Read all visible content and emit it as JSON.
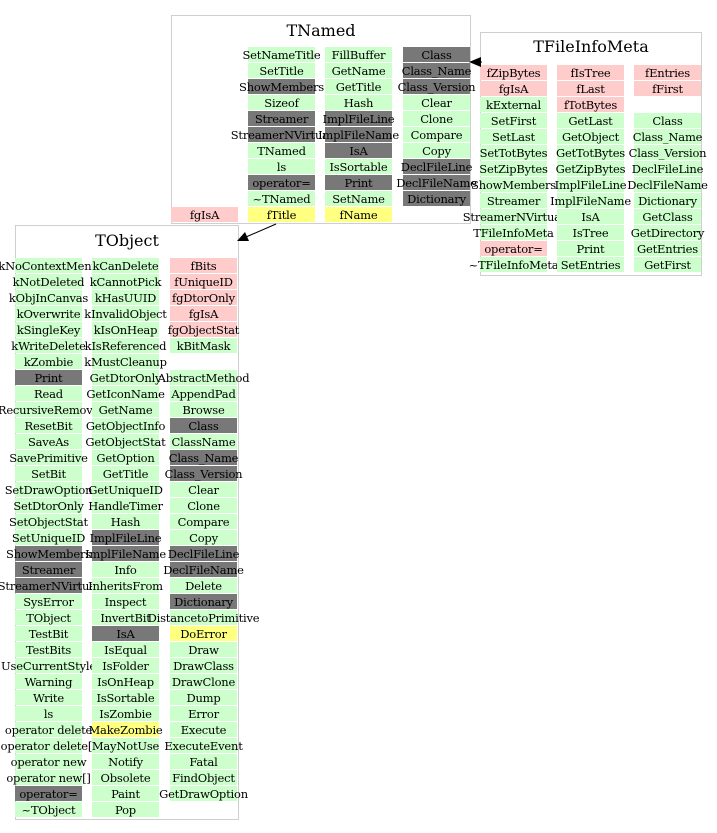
{
  "colors": {
    "method": "#ccffcc",
    "data_member": "#ffcccc",
    "virtual": "#787878",
    "highlight": "#ffff80"
  },
  "classes": {
    "tnamed": {
      "title": "TNamed",
      "columns": [
        [
          null,
          null,
          null,
          null,
          null,
          null,
          null,
          null,
          null,
          null,
          {
            "label": "fgIsA",
            "kind": "d"
          }
        ],
        [
          {
            "label": "SetNameTitle",
            "kind": "m"
          },
          {
            "label": "SetTitle",
            "kind": "m"
          },
          {
            "label": "ShowMembers",
            "kind": "v"
          },
          {
            "label": "Sizeof",
            "kind": "m"
          },
          {
            "label": "Streamer",
            "kind": "v"
          },
          {
            "label": "StreamerNVirtual",
            "kind": "v"
          },
          {
            "label": "TNamed",
            "kind": "m"
          },
          {
            "label": "ls",
            "kind": "m"
          },
          {
            "label": "operator=",
            "kind": "v"
          },
          {
            "label": "~TNamed",
            "kind": "m"
          },
          {
            "label": "fTitle",
            "kind": "p"
          }
        ],
        [
          {
            "label": "FillBuffer",
            "kind": "m"
          },
          {
            "label": "GetName",
            "kind": "m"
          },
          {
            "label": "GetTitle",
            "kind": "m"
          },
          {
            "label": "Hash",
            "kind": "m"
          },
          {
            "label": "ImplFileLine",
            "kind": "v"
          },
          {
            "label": "ImplFileName",
            "kind": "v"
          },
          {
            "label": "IsA",
            "kind": "v"
          },
          {
            "label": "IsSortable",
            "kind": "m"
          },
          {
            "label": "Print",
            "kind": "v"
          },
          {
            "label": "SetName",
            "kind": "m"
          },
          {
            "label": "fName",
            "kind": "p"
          }
        ],
        [
          {
            "label": "Class",
            "kind": "v"
          },
          {
            "label": "Class_Name",
            "kind": "v"
          },
          {
            "label": "Class_Version",
            "kind": "v"
          },
          {
            "label": "Clear",
            "kind": "m"
          },
          {
            "label": "Clone",
            "kind": "m"
          },
          {
            "label": "Compare",
            "kind": "m"
          },
          {
            "label": "Copy",
            "kind": "m"
          },
          {
            "label": "DeclFileLine",
            "kind": "v"
          },
          {
            "label": "DeclFileName",
            "kind": "v"
          },
          {
            "label": "Dictionary",
            "kind": "v"
          }
        ]
      ]
    },
    "tfileinfometa": {
      "title": "TFileInfoMeta",
      "columns": [
        [
          {
            "label": "fZipBytes",
            "kind": "d"
          },
          {
            "label": "fgIsA",
            "kind": "d"
          },
          {
            "label": "kExternal",
            "kind": "m"
          },
          {
            "label": "SetFirst",
            "kind": "m"
          },
          {
            "label": "SetLast",
            "kind": "m"
          },
          {
            "label": "SetTotBytes",
            "kind": "m"
          },
          {
            "label": "SetZipBytes",
            "kind": "m"
          },
          {
            "label": "ShowMembers",
            "kind": "m"
          },
          {
            "label": "Streamer",
            "kind": "m"
          },
          {
            "label": "StreamerNVirtual",
            "kind": "m"
          },
          {
            "label": "TFileInfoMeta",
            "kind": "m"
          },
          {
            "label": "operator=",
            "kind": "d"
          },
          {
            "label": "~TFileInfoMeta",
            "kind": "m"
          }
        ],
        [
          {
            "label": "fIsTree",
            "kind": "d"
          },
          {
            "label": "fLast",
            "kind": "d"
          },
          {
            "label": "fTotBytes",
            "kind": "d"
          },
          {
            "label": "GetLast",
            "kind": "m"
          },
          {
            "label": "GetObject",
            "kind": "m"
          },
          {
            "label": "GetTotBytes",
            "kind": "m"
          },
          {
            "label": "GetZipBytes",
            "kind": "m"
          },
          {
            "label": "ImplFileLine",
            "kind": "m"
          },
          {
            "label": "ImplFileName",
            "kind": "m"
          },
          {
            "label": "IsA",
            "kind": "m"
          },
          {
            "label": "IsTree",
            "kind": "m"
          },
          {
            "label": "Print",
            "kind": "m"
          },
          {
            "label": "SetEntries",
            "kind": "m"
          }
        ],
        [
          {
            "label": "fEntries",
            "kind": "d"
          },
          {
            "label": "fFirst",
            "kind": "d"
          },
          null,
          {
            "label": "Class",
            "kind": "m"
          },
          {
            "label": "Class_Name",
            "kind": "m"
          },
          {
            "label": "Class_Version",
            "kind": "m"
          },
          {
            "label": "DeclFileLine",
            "kind": "m"
          },
          {
            "label": "DeclFileName",
            "kind": "m"
          },
          {
            "label": "Dictionary",
            "kind": "m"
          },
          {
            "label": "GetClass",
            "kind": "m"
          },
          {
            "label": "GetDirectory",
            "kind": "m"
          },
          {
            "label": "GetEntries",
            "kind": "m"
          },
          {
            "label": "GetFirst",
            "kind": "m"
          }
        ]
      ]
    },
    "tobject": {
      "title": "TObject",
      "columns": [
        [
          {
            "label": "kNoContextMenu",
            "kind": "m"
          },
          {
            "label": "kNotDeleted",
            "kind": "m"
          },
          {
            "label": "kObjInCanvas",
            "kind": "m"
          },
          {
            "label": "kOverwrite",
            "kind": "m"
          },
          {
            "label": "kSingleKey",
            "kind": "m"
          },
          {
            "label": "kWriteDelete",
            "kind": "m"
          },
          {
            "label": "kZombie",
            "kind": "m"
          },
          {
            "label": "Print",
            "kind": "v"
          },
          {
            "label": "Read",
            "kind": "m"
          },
          {
            "label": "RecursiveRemove",
            "kind": "m"
          },
          {
            "label": "ResetBit",
            "kind": "m"
          },
          {
            "label": "SaveAs",
            "kind": "m"
          },
          {
            "label": "SavePrimitive",
            "kind": "m"
          },
          {
            "label": "SetBit",
            "kind": "m"
          },
          {
            "label": "SetDrawOption",
            "kind": "m"
          },
          {
            "label": "SetDtorOnly",
            "kind": "m"
          },
          {
            "label": "SetObjectStat",
            "kind": "m"
          },
          {
            "label": "SetUniqueID",
            "kind": "m"
          },
          {
            "label": "ShowMembers",
            "kind": "v"
          },
          {
            "label": "Streamer",
            "kind": "v"
          },
          {
            "label": "StreamerNVirtual",
            "kind": "v"
          },
          {
            "label": "SysError",
            "kind": "m"
          },
          {
            "label": "TObject",
            "kind": "m"
          },
          {
            "label": "TestBit",
            "kind": "m"
          },
          {
            "label": "TestBits",
            "kind": "m"
          },
          {
            "label": "UseCurrentStyle",
            "kind": "m"
          },
          {
            "label": "Warning",
            "kind": "m"
          },
          {
            "label": "Write",
            "kind": "m"
          },
          {
            "label": "ls",
            "kind": "m"
          },
          {
            "label": "operator delete",
            "kind": "m"
          },
          {
            "label": "operator delete[]",
            "kind": "m"
          },
          {
            "label": "operator new",
            "kind": "m"
          },
          {
            "label": "operator new[]",
            "kind": "m"
          },
          {
            "label": "operator=",
            "kind": "v"
          },
          {
            "label": "~TObject",
            "kind": "m"
          }
        ],
        [
          {
            "label": "kCanDelete",
            "kind": "m"
          },
          {
            "label": "kCannotPick",
            "kind": "m"
          },
          {
            "label": "kHasUUID",
            "kind": "m"
          },
          {
            "label": "kInvalidObject",
            "kind": "m"
          },
          {
            "label": "kIsOnHeap",
            "kind": "m"
          },
          {
            "label": "kIsReferenced",
            "kind": "m"
          },
          {
            "label": "kMustCleanup",
            "kind": "m"
          },
          {
            "label": "GetDtorOnly",
            "kind": "m"
          },
          {
            "label": "GetIconName",
            "kind": "m"
          },
          {
            "label": "GetName",
            "kind": "m"
          },
          {
            "label": "GetObjectInfo",
            "kind": "m"
          },
          {
            "label": "GetObjectStat",
            "kind": "m"
          },
          {
            "label": "GetOption",
            "kind": "m"
          },
          {
            "label": "GetTitle",
            "kind": "m"
          },
          {
            "label": "GetUniqueID",
            "kind": "m"
          },
          {
            "label": "HandleTimer",
            "kind": "m"
          },
          {
            "label": "Hash",
            "kind": "m"
          },
          {
            "label": "ImplFileLine",
            "kind": "v"
          },
          {
            "label": "ImplFileName",
            "kind": "v"
          },
          {
            "label": "Info",
            "kind": "m"
          },
          {
            "label": "InheritsFrom",
            "kind": "m"
          },
          {
            "label": "Inspect",
            "kind": "m"
          },
          {
            "label": "InvertBit",
            "kind": "m"
          },
          {
            "label": "IsA",
            "kind": "v"
          },
          {
            "label": "IsEqual",
            "kind": "m"
          },
          {
            "label": "IsFolder",
            "kind": "m"
          },
          {
            "label": "IsOnHeap",
            "kind": "m"
          },
          {
            "label": "IsSortable",
            "kind": "m"
          },
          {
            "label": "IsZombie",
            "kind": "m"
          },
          {
            "label": "MakeZombie",
            "kind": "p"
          },
          {
            "label": "MayNotUse",
            "kind": "m"
          },
          {
            "label": "Notify",
            "kind": "m"
          },
          {
            "label": "Obsolete",
            "kind": "m"
          },
          {
            "label": "Paint",
            "kind": "m"
          },
          {
            "label": "Pop",
            "kind": "m"
          }
        ],
        [
          {
            "label": "fBits",
            "kind": "d"
          },
          {
            "label": "fUniqueID",
            "kind": "d"
          },
          {
            "label": "fgDtorOnly",
            "kind": "d"
          },
          {
            "label": "fgIsA",
            "kind": "d"
          },
          {
            "label": "fgObjectStat",
            "kind": "d"
          },
          {
            "label": "kBitMask",
            "kind": "m"
          },
          null,
          {
            "label": "AbstractMethod",
            "kind": "m"
          },
          {
            "label": "AppendPad",
            "kind": "m"
          },
          {
            "label": "Browse",
            "kind": "m"
          },
          {
            "label": "Class",
            "kind": "v"
          },
          {
            "label": "ClassName",
            "kind": "m"
          },
          {
            "label": "Class_Name",
            "kind": "v"
          },
          {
            "label": "Class_Version",
            "kind": "v"
          },
          {
            "label": "Clear",
            "kind": "m"
          },
          {
            "label": "Clone",
            "kind": "m"
          },
          {
            "label": "Compare",
            "kind": "m"
          },
          {
            "label": "Copy",
            "kind": "m"
          },
          {
            "label": "DeclFileLine",
            "kind": "v"
          },
          {
            "label": "DeclFileName",
            "kind": "v"
          },
          {
            "label": "Delete",
            "kind": "m"
          },
          {
            "label": "Dictionary",
            "kind": "v"
          },
          {
            "label": "DistancetoPrimitive",
            "kind": "m"
          },
          {
            "label": "DoError",
            "kind": "p"
          },
          {
            "label": "Draw",
            "kind": "m"
          },
          {
            "label": "DrawClass",
            "kind": "m"
          },
          {
            "label": "DrawClone",
            "kind": "m"
          },
          {
            "label": "Dump",
            "kind": "m"
          },
          {
            "label": "Error",
            "kind": "m"
          },
          {
            "label": "Execute",
            "kind": "m"
          },
          {
            "label": "ExecuteEvent",
            "kind": "m"
          },
          {
            "label": "Fatal",
            "kind": "m"
          },
          {
            "label": "FindObject",
            "kind": "m"
          },
          {
            "label": "GetDrawOption",
            "kind": "m"
          }
        ]
      ]
    }
  }
}
